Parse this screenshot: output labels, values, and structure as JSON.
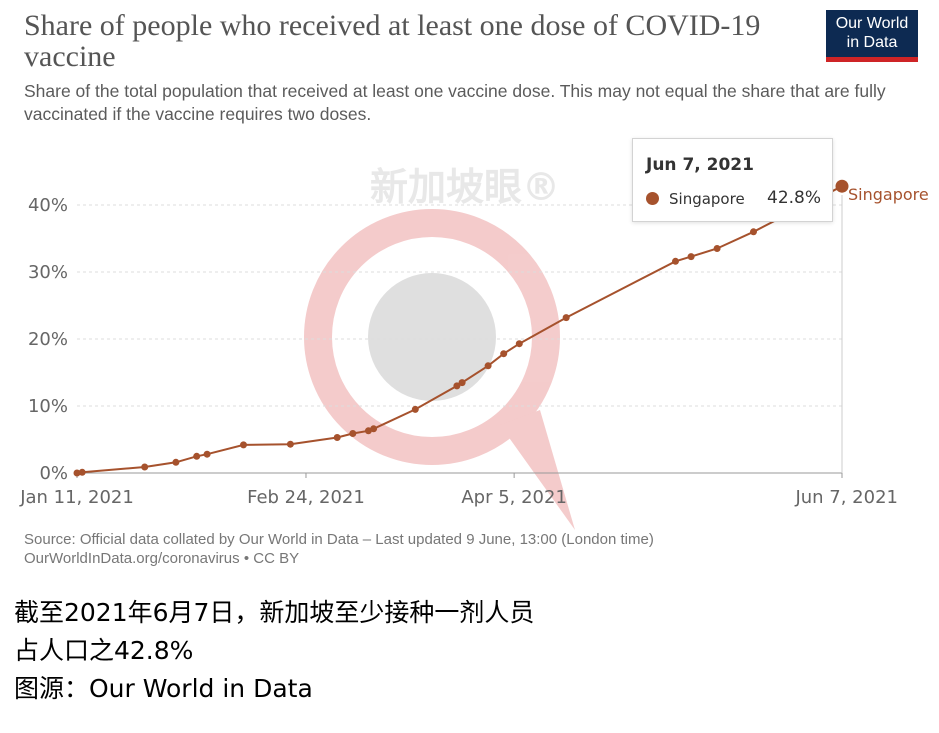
{
  "header": {
    "title": "Share of people who received at least one dose of COVID-19 vaccine",
    "subtitle": "Share of the total population that received at least one vaccine dose. This may not equal the share that are fully vaccinated if the vaccine requires two doses.",
    "logo_line1": "Our World",
    "logo_line2": "in Data"
  },
  "watermark": {
    "text": "新加坡眼®"
  },
  "tooltip": {
    "date": "Jun 7, 2021",
    "series": "Singapore",
    "value": "42.8%"
  },
  "footer": {
    "source_line1": "Source: Official data collated by Our World in Data – Last updated 9 June, 13:00 (London time)",
    "source_line2": "OurWorldInData.org/coronavirus • CC BY"
  },
  "caption": {
    "line1": "截至2021年6月7日，新加坡至少接种一剂人员",
    "line2": "占人口之42.8%",
    "line3": "图源：Our World in Data"
  },
  "colors": {
    "series": "#a6522d",
    "grid": "#dddddd",
    "axis_text": "#666666",
    "logo_bg": "#0d2a52",
    "logo_accent": "#ce2426"
  },
  "chart_data": {
    "type": "line",
    "title": "Share of people who received at least one dose of COVID-19 vaccine",
    "x_ticks": [
      "Jan 11, 2021",
      "Feb 24, 2021",
      "Apr 5, 2021",
      "Jun 7, 2021"
    ],
    "y_ticks": [
      "0%",
      "10%",
      "20%",
      "30%",
      "40%"
    ],
    "ylim": [
      0,
      40
    ],
    "xlim": [
      "2021-01-11",
      "2021-06-07"
    ],
    "grid": "horizontal dashed",
    "series": [
      {
        "name": "Singapore",
        "points": [
          {
            "x": "2021-01-11",
            "y": 0.0
          },
          {
            "x": "2021-01-12",
            "y": 0.1
          },
          {
            "x": "2021-01-24",
            "y": 0.9
          },
          {
            "x": "2021-01-30",
            "y": 1.6
          },
          {
            "x": "2021-02-03",
            "y": 2.5
          },
          {
            "x": "2021-02-05",
            "y": 2.8
          },
          {
            "x": "2021-02-12",
            "y": 4.2
          },
          {
            "x": "2021-02-21",
            "y": 4.3
          },
          {
            "x": "2021-03-02",
            "y": 5.3
          },
          {
            "x": "2021-03-05",
            "y": 5.9
          },
          {
            "x": "2021-03-08",
            "y": 6.3
          },
          {
            "x": "2021-03-09",
            "y": 6.6
          },
          {
            "x": "2021-03-17",
            "y": 9.5
          },
          {
            "x": "2021-03-25",
            "y": 13.0
          },
          {
            "x": "2021-03-26",
            "y": 13.5
          },
          {
            "x": "2021-03-31",
            "y": 16.0
          },
          {
            "x": "2021-04-03",
            "y": 17.8
          },
          {
            "x": "2021-04-06",
            "y": 19.3
          },
          {
            "x": "2021-04-15",
            "y": 23.2
          },
          {
            "x": "2021-05-06",
            "y": 31.6
          },
          {
            "x": "2021-05-09",
            "y": 32.3
          },
          {
            "x": "2021-05-14",
            "y": 33.5
          },
          {
            "x": "2021-05-21",
            "y": 36.0
          },
          {
            "x": "2021-06-07",
            "y": 42.8
          }
        ]
      }
    ]
  }
}
